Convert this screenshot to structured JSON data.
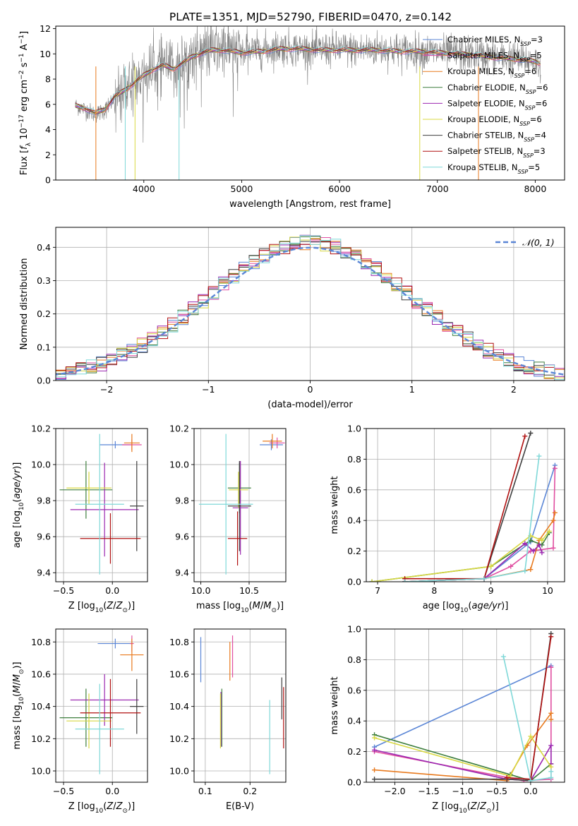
{
  "figure": {
    "title": "PLATE=1351, MJD=52790, FIBERID=0470, z=0.142"
  },
  "series_styles": [
    {
      "name": "Chabrier MILES",
      "nssp": "3",
      "color": "#5b86d6"
    },
    {
      "name": "Salpeter MILES",
      "nssp": "5",
      "color": "#e04ea0"
    },
    {
      "name": "Kroupa MILES",
      "nssp": "6",
      "color": "#e87a1e"
    },
    {
      "name": "Chabrier ELODIE",
      "nssp": "6",
      "color": "#3f7f3f"
    },
    {
      "name": "Salpeter ELODIE",
      "nssp": "6",
      "color": "#9b27b0"
    },
    {
      "name": "Kroupa ELODIE",
      "nssp": "6",
      "color": "#d8d840"
    },
    {
      "name": "Chabrier STELIB",
      "nssp": "4",
      "color": "#3f3f3f"
    },
    {
      "name": "Salpeter STELIB",
      "nssp": "3",
      "color": "#b01010"
    },
    {
      "name": "Kroupa STELIB",
      "nssp": "5",
      "color": "#7fd8d8"
    }
  ],
  "chart_data": [
    {
      "id": "spectrum",
      "type": "line",
      "xlabel": "wavelength [Angstrom, rest frame]",
      "ylabel": "Flux [f_λ 10^-17 erg cm^-2 s^-1 A^-1]",
      "xlim": [
        3100,
        8300
      ],
      "ylim": [
        0,
        12.2
      ],
      "xticks": [
        4000,
        5000,
        6000,
        7000,
        8000
      ],
      "yticks": [
        0,
        2,
        4,
        6,
        8,
        10,
        12
      ],
      "legend_position": "upper right",
      "data_color": "#808080",
      "data": {
        "x": [
          3300,
          3400,
          3500,
          3600,
          3700,
          3800,
          3900,
          4000,
          4100,
          4200,
          4300,
          4400,
          4500,
          4600,
          4700,
          4800,
          4900,
          5000,
          5200,
          5400,
          5600,
          5800,
          6000,
          6200,
          6400,
          6600,
          6800,
          7000,
          7200,
          7400,
          7600,
          7800,
          8000,
          8060
        ],
        "y": [
          5.9,
          5.6,
          5.2,
          5.5,
          6.5,
          7.0,
          7.6,
          8.4,
          8.8,
          9.2,
          8.7,
          9.3,
          9.9,
          10.2,
          10.3,
          10.4,
          10.3,
          10.1,
          10.3,
          10.5,
          10.4,
          10.3,
          10.4,
          10.3,
          10.4,
          10.3,
          10.2,
          10.1,
          10.0,
          9.9,
          9.8,
          9.6,
          9.4,
          9.2
        ]
      },
      "model": {
        "x": [
          3300,
          3400,
          3500,
          3600,
          3700,
          3800,
          3900,
          4000,
          4100,
          4200,
          4300,
          4400,
          4500,
          4600,
          4700,
          4800,
          4900,
          5000,
          5200,
          5400,
          5600,
          5800,
          6000,
          6200,
          6400,
          6600,
          6800,
          7000,
          7200,
          7400,
          7600,
          7800,
          8000,
          8060
        ],
        "y": [
          5.9,
          5.7,
          5.3,
          5.6,
          6.6,
          7.1,
          7.7,
          8.3,
          8.8,
          9.1,
          8.8,
          9.3,
          9.8,
          10.1,
          10.3,
          10.3,
          10.2,
          10.1,
          10.2,
          10.4,
          10.4,
          10.3,
          10.3,
          10.3,
          10.3,
          10.2,
          10.2,
          10.1,
          10.0,
          9.9,
          9.7,
          9.6,
          9.4,
          9.2
        ]
      },
      "drops": [
        {
          "x": 3510,
          "series": "Kroupa MILES"
        },
        {
          "x": 3810,
          "series": "Kroupa STELIB"
        },
        {
          "x": 3910,
          "series": "Kroupa ELODIE"
        },
        {
          "x": 4360,
          "series": "Kroupa STELIB"
        },
        {
          "x": 6820,
          "series": "Kroupa ELODIE"
        },
        {
          "x": 7420,
          "series": "Kroupa MILES"
        }
      ]
    },
    {
      "id": "residuals",
      "type": "line",
      "xlabel": "(data-model)/error",
      "ylabel": "Normed distribution",
      "xlim": [
        -2.5,
        2.5
      ],
      "ylim": [
        0,
        0.46
      ],
      "xticks": [
        -2,
        -1,
        0,
        1,
        2
      ],
      "yticks": [
        0.0,
        0.1,
        0.2,
        0.3,
        0.4
      ],
      "grid": true,
      "legend": "𝒩(0, 1)",
      "legend_position": "upper right",
      "gauss_color": "#5b86d6",
      "bin_width": 0.1,
      "bin_start": -2.5,
      "bin_count": 50
    },
    {
      "id": "age_vs_Z",
      "type": "scatter",
      "xlabel": "Z [log10(Z/Z☉)]",
      "ylabel": "age [log10(age/yr)]",
      "xlim": [
        -0.58,
        0.36
      ],
      "ylim": [
        9.35,
        10.2
      ],
      "xticks": [
        -0.5,
        0.0
      ],
      "yticks": [
        9.4,
        9.6,
        9.8,
        10.0,
        10.2
      ],
      "grid": true,
      "points": [
        {
          "series": "Chabrier MILES",
          "x": 0.03,
          "xerr": 0.16,
          "y": 10.11,
          "yerr": 0.02
        },
        {
          "series": "Salpeter MILES",
          "x": 0.2,
          "xerr": 0.1,
          "y": 10.11,
          "yerr": 0.03
        },
        {
          "series": "Kroupa MILES",
          "x": 0.2,
          "xerr": 0.08,
          "y": 10.12,
          "yerr": 0.05
        },
        {
          "series": "Chabrier ELODIE",
          "x": -0.27,
          "xerr": 0.27,
          "y": 9.86,
          "yerr": 0.16
        },
        {
          "series": "Salpeter ELODIE",
          "x": -0.08,
          "xerr": 0.35,
          "y": 9.75,
          "yerr": 0.26
        },
        {
          "series": "Kroupa ELODIE",
          "x": -0.24,
          "xerr": 0.23,
          "y": 9.87,
          "yerr": 0.09
        },
        {
          "series": "Chabrier STELIB",
          "x": 0.25,
          "xerr": 0.07,
          "y": 9.77,
          "yerr": 0.25
        },
        {
          "series": "Salpeter STELIB",
          "x": -0.02,
          "xerr": 0.31,
          "y": 9.59,
          "yerr": 0.14
        },
        {
          "series": "Kroupa STELIB",
          "x": -0.13,
          "xerr": 0.25,
          "y": 9.78,
          "yerr": 0.39
        }
      ]
    },
    {
      "id": "age_vs_mass",
      "type": "scatter",
      "xlabel": "mass [log10(M/M☉)]",
      "xlim": [
        9.93,
        10.88
      ],
      "ylim": [
        9.35,
        10.2
      ],
      "xticks": [
        10.0,
        10.5
      ],
      "yticks": [
        9.4,
        9.6,
        9.8,
        10.0,
        10.2
      ],
      "grid": true,
      "points": [
        {
          "series": "Chabrier MILES",
          "x": 10.73,
          "xerr": 0.12,
          "y": 10.11,
          "yerr": 0.03
        },
        {
          "series": "Salpeter MILES",
          "x": 10.79,
          "xerr": 0.08,
          "y": 10.12,
          "yerr": 0.03
        },
        {
          "series": "Kroupa MILES",
          "x": 10.74,
          "xerr": 0.1,
          "y": 10.13,
          "yerr": 0.04
        },
        {
          "series": "Chabrier ELODIE",
          "x": 10.4,
          "xerr": 0.12,
          "y": 9.87,
          "yerr": 0.14
        },
        {
          "series": "Salpeter ELODIE",
          "x": 10.41,
          "xerr": 0.08,
          "y": 9.76,
          "yerr": 0.26
        },
        {
          "series": "Kroupa ELODIE",
          "x": 10.39,
          "xerr": 0.1,
          "y": 9.86,
          "yerr": 0.1
        },
        {
          "series": "Chabrier STELIB",
          "x": 10.4,
          "xerr": 0.12,
          "y": 9.77,
          "yerr": 0.25
        },
        {
          "series": "Salpeter STELIB",
          "x": 10.38,
          "xerr": 0.1,
          "y": 9.59,
          "yerr": 0.15
        },
        {
          "series": "Kroupa STELIB",
          "x": 10.26,
          "xerr": 0.28,
          "y": 9.78,
          "yerr": 0.39
        }
      ]
    },
    {
      "id": "mass_weight_vs_age",
      "type": "line",
      "xlabel": "age [log10(age/yr)]",
      "ylabel": "mass weight",
      "xlim": [
        6.8,
        10.3
      ],
      "ylim": [
        0,
        1
      ],
      "xticks": [
        7,
        8,
        9,
        10
      ],
      "yticks": [
        0.0,
        0.2,
        0.4,
        0.6,
        0.8,
        1.0
      ],
      "grid": true,
      "series": [
        {
          "name": "Chabrier MILES",
          "x": [
            7.48,
            8.88,
            9.7,
            10.13
          ],
          "y": [
            0.0,
            0.02,
            0.26,
            0.76
          ]
        },
        {
          "name": "Salpeter MILES",
          "x": [
            7.48,
            8.88,
            9.35,
            9.7,
            10.1,
            10.13
          ],
          "y": [
            0.0,
            0.02,
            0.1,
            0.2,
            0.22,
            0.74
          ]
        },
        {
          "name": "Kroupa MILES",
          "x": [
            7.48,
            8.88,
            9.7,
            9.85,
            10.1,
            10.13
          ],
          "y": [
            0.0,
            0.02,
            0.08,
            0.27,
            0.4,
            0.45
          ]
        },
        {
          "name": "Chabrier ELODIE",
          "x": [
            6.9,
            9.0,
            9.7,
            9.9,
            10.03
          ],
          "y": [
            0.0,
            0.1,
            0.27,
            0.24,
            0.32
          ]
        },
        {
          "name": "Salpeter ELODIE",
          "x": [
            7.48,
            8.88,
            9.6,
            9.75,
            9.85,
            9.9
          ],
          "y": [
            0.0,
            0.02,
            0.25,
            0.2,
            0.24,
            0.19
          ]
        },
        {
          "name": "Kroupa ELODIE",
          "x": [
            6.9,
            9.0,
            9.7,
            9.9,
            10.03
          ],
          "y": [
            0.0,
            0.1,
            0.3,
            0.27,
            0.33
          ]
        },
        {
          "name": "Chabrier STELIB",
          "x": [
            7.48,
            8.88,
            9.7
          ],
          "y": [
            0.0,
            0.02,
            0.97
          ]
        },
        {
          "name": "Salpeter STELIB",
          "x": [
            7.48,
            8.88,
            9.6
          ],
          "y": [
            0.02,
            0.02,
            0.95
          ]
        },
        {
          "name": "Kroupa STELIB",
          "x": [
            7.48,
            8.88,
            9.6,
            9.85
          ],
          "y": [
            0.0,
            0.02,
            0.07,
            0.82
          ]
        }
      ]
    },
    {
      "id": "mass_vs_Z",
      "type": "scatter",
      "xlabel": "Z [log10(Z/Z☉)]",
      "ylabel": "mass [log10(M/M☉)]",
      "xlim": [
        -0.58,
        0.36
      ],
      "ylim": [
        9.93,
        10.88
      ],
      "xticks": [
        -0.5,
        0.0
      ],
      "yticks": [
        10.0,
        10.2,
        10.4,
        10.6,
        10.8
      ],
      "grid": true,
      "points": [
        {
          "series": "Chabrier MILES",
          "x": 0.03,
          "xerr": 0.18,
          "y": 10.79,
          "yerr": 0.03
        },
        {
          "series": "Salpeter MILES",
          "x": 0.2,
          "xerr": 0.02,
          "y": 10.79,
          "yerr": 0.05
        },
        {
          "series": "Kroupa MILES",
          "x": 0.2,
          "xerr": 0.12,
          "y": 10.72,
          "yerr": 0.1
        },
        {
          "series": "Chabrier ELODIE",
          "x": -0.27,
          "xerr": 0.27,
          "y": 10.33,
          "yerr": 0.18
        },
        {
          "series": "Salpeter ELODIE",
          "x": -0.08,
          "xerr": 0.35,
          "y": 10.44,
          "yerr": 0.16
        },
        {
          "series": "Kroupa ELODIE",
          "x": -0.24,
          "xerr": 0.23,
          "y": 10.31,
          "yerr": 0.17
        },
        {
          "series": "Chabrier STELIB",
          "x": 0.25,
          "xerr": 0.07,
          "y": 10.4,
          "yerr": 0.17
        },
        {
          "series": "Salpeter STELIB",
          "x": -0.02,
          "xerr": 0.31,
          "y": 10.36,
          "yerr": 0.21
        },
        {
          "series": "Kroupa STELIB",
          "x": -0.13,
          "xerr": 0.25,
          "y": 10.26,
          "yerr": 0.28
        }
      ]
    },
    {
      "id": "mass_vs_ebv",
      "type": "scatter",
      "xlabel": "E(B-V)",
      "xlim": [
        0.075,
        0.28
      ],
      "ylim": [
        9.93,
        10.88
      ],
      "xticks": [
        0.1,
        0.2
      ],
      "yticks": [
        10.0,
        10.2,
        10.4,
        10.6,
        10.8
      ],
      "grid": true,
      "points": [
        {
          "series": "Chabrier MILES",
          "x": 0.09,
          "y": 10.69,
          "yerr": 0.14
        },
        {
          "series": "Salpeter MILES",
          "x": 0.161,
          "y": 10.71,
          "yerr": 0.13
        },
        {
          "series": "Kroupa MILES",
          "x": 0.155,
          "y": 10.68,
          "yerr": 0.12
        },
        {
          "series": "Chabrier ELODIE",
          "x": 0.137,
          "y": 10.33,
          "yerr": 0.18
        },
        {
          "series": "Salpeter ELODIE",
          "x": 0.135,
          "y": 10.32,
          "yerr": 0.17
        },
        {
          "series": "Kroupa ELODIE",
          "x": 0.134,
          "y": 10.31,
          "yerr": 0.17
        },
        {
          "series": "Chabrier STELIB",
          "x": 0.271,
          "y": 10.45,
          "yerr": 0.13
        },
        {
          "series": "Salpeter STELIB",
          "x": 0.275,
          "y": 10.33,
          "yerr": 0.19
        },
        {
          "series": "Kroupa STELIB",
          "x": 0.244,
          "y": 10.21,
          "yerr": 0.23
        }
      ]
    },
    {
      "id": "mass_weight_vs_Z",
      "type": "line",
      "xlabel": "Z [log10(Z/Z☉)]",
      "ylabel": "mass weight",
      "xlim": [
        -2.42,
        0.5
      ],
      "ylim": [
        0,
        1
      ],
      "xticks": [
        -2.0,
        -1.5,
        -1.0,
        -0.5,
        0.0
      ],
      "yticks": [
        0.0,
        0.2,
        0.4,
        0.6,
        0.8,
        1.0
      ],
      "grid": true,
      "series": [
        {
          "name": "Chabrier MILES",
          "x": [
            -2.3,
            0.3
          ],
          "y": [
            0.23,
            0.76
          ]
        },
        {
          "name": "Salpeter MILES",
          "x": [
            -2.3,
            -0.1,
            0.3,
            0.3
          ],
          "y": [
            0.2,
            0.01,
            0.02,
            0.75
          ]
        },
        {
          "name": "Kroupa MILES",
          "x": [
            -2.3,
            -0.35,
            -0.05,
            0.3,
            0.3
          ],
          "y": [
            0.08,
            0.01,
            0.24,
            0.45,
            0.41
          ]
        },
        {
          "name": "Chabrier ELODIE",
          "x": [
            -2.3,
            -0.3,
            0.0,
            0.3
          ],
          "y": [
            0.31,
            0.05,
            0.01,
            0.12
          ]
        },
        {
          "name": "Salpeter ELODIE",
          "x": [
            -2.3,
            -0.35,
            0.0,
            0.3,
            0.3
          ],
          "y": [
            0.21,
            0.02,
            0.01,
            0.24,
            0.12
          ]
        },
        {
          "name": "Kroupa ELODIE",
          "x": [
            -2.3,
            -0.3,
            0.0,
            0.3
          ],
          "y": [
            0.29,
            0.04,
            0.3,
            0.1
          ]
        },
        {
          "name": "Chabrier STELIB",
          "x": [
            -2.3,
            -0.35,
            0.0,
            0.3
          ],
          "y": [
            0.02,
            0.02,
            0.01,
            0.97
          ]
        },
        {
          "name": "Salpeter STELIB",
          "x": [
            -0.35,
            0.0,
            0.3
          ],
          "y": [
            0.03,
            0.02,
            0.95
          ]
        },
        {
          "name": "Kroupa STELIB",
          "x": [
            -0.4,
            0.0,
            0.3,
            0.3
          ],
          "y": [
            0.82,
            0.01,
            0.03,
            0.07
          ]
        }
      ]
    }
  ]
}
